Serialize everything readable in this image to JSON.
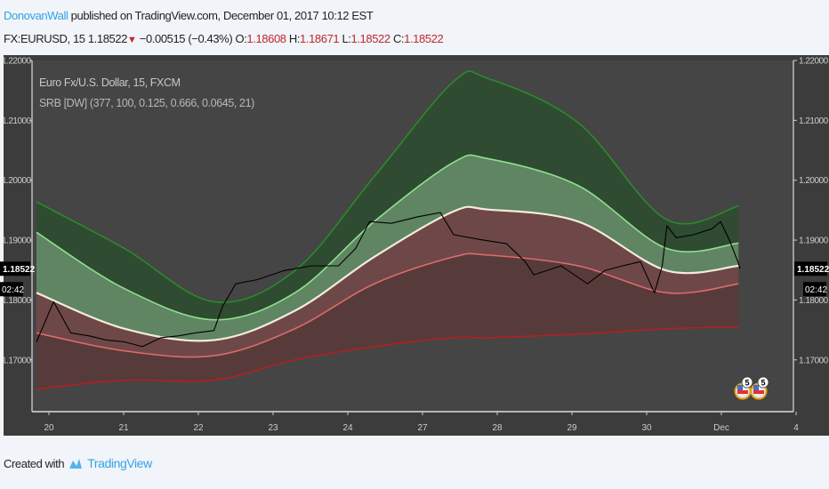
{
  "header": {
    "author": "DonovanWall",
    "published_text": "published on TradingView.com, December 01, 2017 10:12 EST",
    "symbol": "FX:EURUSD, 15",
    "last": "1.18522",
    "change": "−0.00515 (−0.43%)",
    "open_label": "O:",
    "open": "1.18608",
    "high_label": "H:",
    "high": "1.18671",
    "low_label": "L:",
    "low": "1.18522",
    "close_label": "C:",
    "close": "1.18522",
    "direction_icon": "triangle-down-icon"
  },
  "legend": {
    "title": "Euro Fx/U.S. Dollar, 15, FXCM",
    "indicator": "SRB [DW] (377, 100, 0.125, 0.666, 0.0645, 21)"
  },
  "footer": {
    "created_with": "Created with",
    "brand": "TradingView"
  },
  "chart_data": {
    "type": "line",
    "ylim": [
      1.1615,
      1.22
    ],
    "y_ticks": [
      "1.22000",
      "1.21000",
      "1.20000",
      "1.19000",
      "1.18000",
      "1.17000"
    ],
    "y_tick_values": [
      1.22,
      1.21,
      1.2,
      1.19,
      1.18,
      1.17
    ],
    "x_ticks": [
      "20",
      "21",
      "22",
      "23",
      "24",
      "27",
      "28",
      "29",
      "30",
      "Dec",
      "4"
    ],
    "x_tick_dates": [
      "11-20",
      "11-21",
      "11-22",
      "11-23",
      "11-24",
      "11-27",
      "11-28",
      "11-29",
      "11-30",
      "12-01",
      "12-04"
    ],
    "price_label": "1.18522",
    "countdown_label": "02:42",
    "grid": false,
    "colors": {
      "background": "#3c3c3c",
      "plot": "#454545",
      "price": "#000000",
      "band_outer_upper": "#2a8a2a",
      "band_inner_upper": "#8fe08f",
      "center": "#f3ebdc",
      "band_inner_lower": "#e06a6a",
      "band_outer_lower": "#b32020"
    },
    "band_dates": [
      "11-19 20:00",
      "11-21 00:15",
      "11-22 05:00",
      "11-23 07:00",
      "11-24 08:30",
      "11-27 10:00",
      "11-27 21:00",
      "11-29 02:00",
      "11-30 06:30",
      "12-01 05:30"
    ],
    "bands": {
      "outer_upper": [
        1.1964,
        1.1886,
        1.1797,
        1.1849,
        1.2006,
        1.2165,
        1.217,
        1.2096,
        1.1934,
        1.1957
      ],
      "inner_upper": [
        1.1913,
        1.1819,
        1.1767,
        1.1812,
        1.1931,
        1.203,
        1.2036,
        1.1991,
        1.1886,
        1.1895
      ],
      "center": [
        1.1812,
        1.1752,
        1.1733,
        1.1782,
        1.1872,
        1.1948,
        1.1951,
        1.1931,
        1.1849,
        1.1857
      ],
      "inner_lower": [
        1.1745,
        1.1715,
        1.1707,
        1.1752,
        1.1827,
        1.1872,
        1.1875,
        1.1857,
        1.1812,
        1.1827
      ],
      "outer_lower": [
        1.1651,
        1.1666,
        1.1666,
        1.17,
        1.1722,
        1.1737,
        1.1737,
        1.1743,
        1.1752,
        1.1755
      ]
    },
    "price_series": [
      [
        "11-19 20:00",
        1.173
      ],
      [
        "11-20 01:30",
        1.1797
      ],
      [
        "11-20 07:00",
        1.1745
      ],
      [
        "11-20 13:00",
        1.174
      ],
      [
        "11-20 18:30",
        1.1733
      ],
      [
        "11-21 00:15",
        1.173
      ],
      [
        "11-21 06:00",
        1.1722
      ],
      [
        "11-21 12:00",
        1.1737
      ],
      [
        "11-21 17:30",
        1.174
      ],
      [
        "11-21 23:00",
        1.1745
      ],
      [
        "11-22 05:00",
        1.1749
      ],
      [
        "11-22 07:45",
        1.1789
      ],
      [
        "11-22 12:00",
        1.1827
      ],
      [
        "11-22 19:00",
        1.1834
      ],
      [
        "11-23 03:30",
        1.1849
      ],
      [
        "11-23 12:15",
        1.1857
      ],
      [
        "11-23 21:00",
        1.1857
      ],
      [
        "11-24 02:30",
        1.1886
      ],
      [
        "11-24 07:00",
        1.1931
      ],
      [
        "11-24 14:00",
        1.1928
      ],
      [
        "11-24 22:30",
        1.1939
      ],
      [
        "11-27 05:45",
        1.1946
      ],
      [
        "11-27 10:00",
        1.1909
      ],
      [
        "11-27 18:30",
        1.1901
      ],
      [
        "11-28 03:00",
        1.1894
      ],
      [
        "11-28 09:00",
        1.1864
      ],
      [
        "11-28 11:45",
        1.1842
      ],
      [
        "11-28 20:30",
        1.1857
      ],
      [
        "11-29 05:00",
        1.1827
      ],
      [
        "11-29 10:30",
        1.1849
      ],
      [
        "11-29 16:15",
        1.1857
      ],
      [
        "11-29 22:00",
        1.1864
      ],
      [
        "11-30 02:30",
        1.1812
      ],
      [
        "11-30 05:00",
        1.1857
      ],
      [
        "11-30 06:30",
        1.1924
      ],
      [
        "11-30 09:30",
        1.1904
      ],
      [
        "11-30 15:00",
        1.1909
      ],
      [
        "11-30 21:00",
        1.1919
      ],
      [
        "11-30 23:45",
        1.1931
      ],
      [
        "12-01 02:30",
        1.1901
      ],
      [
        "12-01 05:30",
        1.1861
      ],
      [
        "12-01 06:00",
        1.18522
      ]
    ],
    "events": [
      {
        "label": "5",
        "icon": "us-flag-icon"
      },
      {
        "label": "5",
        "icon": "us-flag-icon"
      }
    ]
  }
}
